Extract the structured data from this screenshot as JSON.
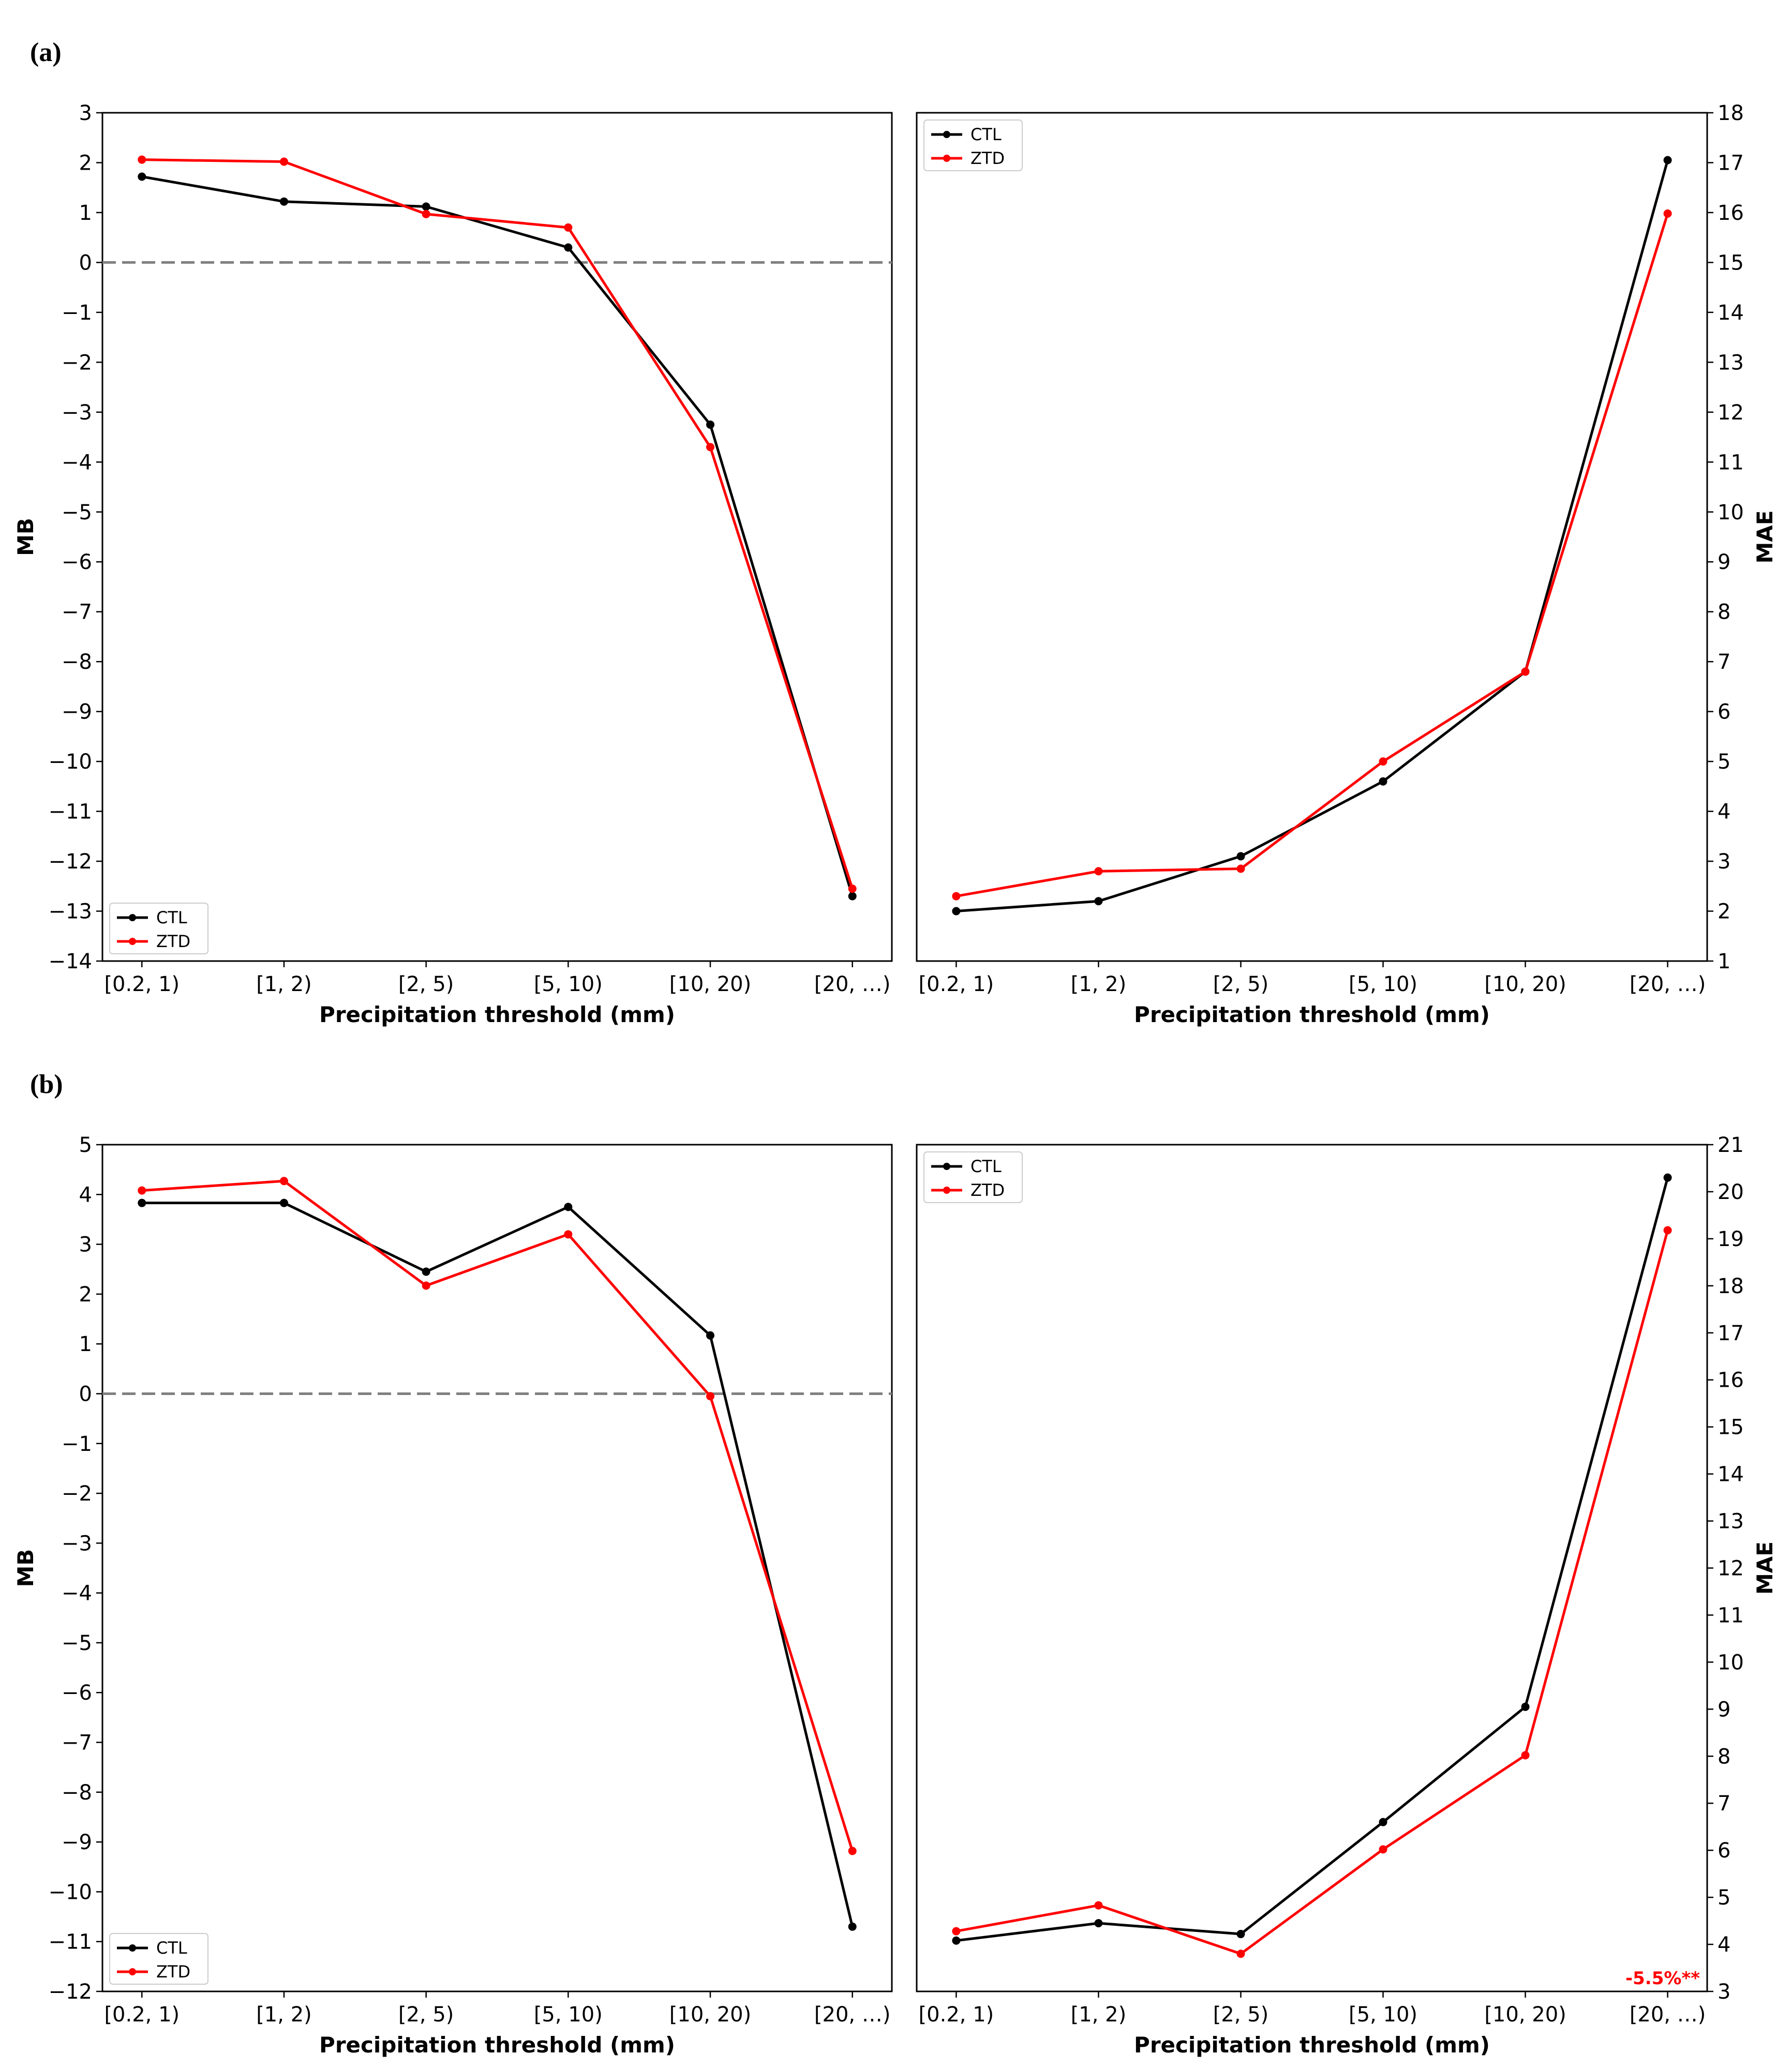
{
  "colors": {
    "CTL": "#000000",
    "ZTD": "#ff0000",
    "zero_line": "#808080"
  },
  "panels": [
    {
      "label": "(a)"
    },
    {
      "label": "(b)"
    }
  ],
  "chart_data": [
    {
      "panel": "(a)",
      "side": "left",
      "type": "line",
      "categories": [
        "[0.2, 1)",
        "[1, 2)",
        "[2, 5)",
        "[5, 10)",
        "[10, 20)",
        "[20, …)"
      ],
      "xlabel": "Precipitation threshold (mm)",
      "ylabel": "MB",
      "ylim": [
        -14,
        3
      ],
      "yticks": [
        3,
        2,
        1,
        0,
        -1,
        -2,
        -3,
        -4,
        -5,
        -6,
        -7,
        -8,
        -9,
        -10,
        -11,
        -12,
        -13,
        -14
      ],
      "yaxis_side": "left",
      "reference_line": 0,
      "legend": "lower-left",
      "series": [
        {
          "name": "CTL",
          "values": [
            1.72,
            1.22,
            1.12,
            0.3,
            -3.25,
            -12.7
          ]
        },
        {
          "name": "ZTD",
          "values": [
            2.06,
            2.02,
            0.97,
            0.7,
            -3.7,
            -12.55
          ]
        }
      ]
    },
    {
      "panel": "(a)",
      "side": "right",
      "type": "line",
      "categories": [
        "[0.2, 1)",
        "[1, 2)",
        "[2, 5)",
        "[5, 10)",
        "[10, 20)",
        "[20, …)"
      ],
      "xlabel": "Precipitation threshold (mm)",
      "ylabel": "MAE",
      "ylim": [
        1,
        18
      ],
      "yticks": [
        18,
        17,
        16,
        15,
        14,
        13,
        12,
        11,
        10,
        9,
        8,
        7,
        6,
        5,
        4,
        3,
        2,
        1
      ],
      "yaxis_side": "right",
      "legend": "upper-left",
      "series": [
        {
          "name": "CTL",
          "values": [
            2.0,
            2.2,
            3.1,
            4.6,
            6.8,
            17.05
          ]
        },
        {
          "name": "ZTD",
          "values": [
            2.3,
            2.8,
            2.85,
            5.0,
            6.8,
            15.98
          ]
        }
      ]
    },
    {
      "panel": "(b)",
      "side": "left",
      "type": "line",
      "categories": [
        "[0.2, 1)",
        "[1, 2)",
        "[2, 5)",
        "[5, 10)",
        "[10, 20)",
        "[20, …)"
      ],
      "xlabel": "Precipitation threshold (mm)",
      "ylabel": "MB",
      "ylim": [
        -12,
        5
      ],
      "yticks": [
        5,
        4,
        3,
        2,
        1,
        0,
        -1,
        -2,
        -3,
        -4,
        -5,
        -6,
        -7,
        -8,
        -9,
        -10,
        -11,
        -12
      ],
      "yaxis_side": "left",
      "reference_line": 0,
      "legend": "lower-left",
      "series": [
        {
          "name": "CTL",
          "values": [
            3.83,
            3.83,
            2.45,
            3.75,
            1.17,
            -10.7
          ]
        },
        {
          "name": "ZTD",
          "values": [
            4.08,
            4.27,
            2.17,
            3.2,
            -0.05,
            -9.18
          ]
        }
      ]
    },
    {
      "panel": "(b)",
      "side": "right",
      "type": "line",
      "categories": [
        "[0.2, 1)",
        "[1, 2)",
        "[2, 5)",
        "[5, 10)",
        "[10, 20)",
        "[20, …)"
      ],
      "xlabel": "Precipitation threshold (mm)",
      "ylabel": "MAE",
      "ylim": [
        3,
        21
      ],
      "yticks": [
        21,
        20,
        19,
        18,
        17,
        16,
        15,
        14,
        13,
        12,
        11,
        10,
        9,
        8,
        7,
        6,
        5,
        4,
        3
      ],
      "yaxis_side": "right",
      "legend": "upper-left",
      "annotation": {
        "text": "-5.5%**",
        "color": "#ff0000",
        "position": "bottom-right"
      },
      "series": [
        {
          "name": "CTL",
          "values": [
            4.08,
            4.45,
            4.22,
            6.6,
            9.05,
            20.3
          ]
        },
        {
          "name": "ZTD",
          "values": [
            4.28,
            4.83,
            3.8,
            6.02,
            8.02,
            19.18
          ]
        }
      ]
    }
  ]
}
